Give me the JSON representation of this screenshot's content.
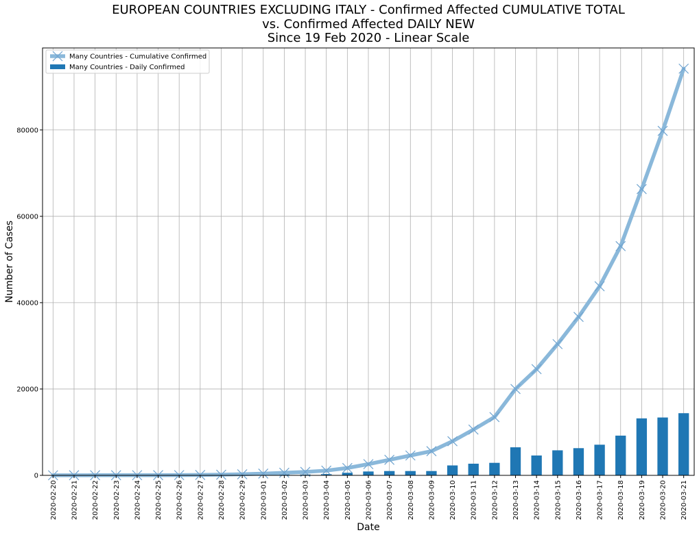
{
  "chart_data": {
    "type": "bar+line",
    "title": [
      "EUROPEAN COUNTRIES EXCLUDING ITALY - Confirmed Affected CUMULATIVE TOTAL",
      "vs. Confirmed Affected DAILY NEW",
      "Since 19 Feb 2020 - Linear Scale"
    ],
    "xlabel": "Date",
    "ylabel": "Number of Cases",
    "ylim": [
      0,
      99000
    ],
    "yticks": [
      0,
      20000,
      40000,
      60000,
      80000
    ],
    "grid": true,
    "legend_position": "top-left",
    "categories": [
      "2020-02-20",
      "2020-02-21",
      "2020-02-22",
      "2020-02-23",
      "2020-02-24",
      "2020-02-25",
      "2020-02-26",
      "2020-02-27",
      "2020-02-28",
      "2020-02-29",
      "2020-03-01",
      "2020-03-02",
      "2020-03-03",
      "2020-03-04",
      "2020-03-05",
      "2020-03-06",
      "2020-03-07",
      "2020-03-08",
      "2020-03-09",
      "2020-03-10",
      "2020-03-11",
      "2020-03-12",
      "2020-03-13",
      "2020-03-14",
      "2020-03-15",
      "2020-03-16",
      "2020-03-17",
      "2020-03-18",
      "2020-03-19",
      "2020-03-20",
      "2020-03-21"
    ],
    "series": [
      {
        "name": "Many Countries - Cumulative Confirmed",
        "kind": "line",
        "color": "#8ab8da",
        "marker": "x",
        "values": [
          20,
          25,
          30,
          35,
          40,
          45,
          60,
          90,
          150,
          250,
          400,
          600,
          800,
          1100,
          1700,
          2600,
          3600,
          4600,
          5600,
          7900,
          10600,
          13500,
          20000,
          24600,
          30400,
          36700,
          43800,
          53100,
          66300,
          79800,
          94200
        ]
      },
      {
        "name": "Many Countries - Daily Confirmed",
        "kind": "bar",
        "color": "#1f77b4",
        "values": [
          5,
          5,
          5,
          5,
          5,
          5,
          15,
          30,
          60,
          100,
          150,
          200,
          200,
          300,
          600,
          900,
          1000,
          1000,
          1000,
          2300,
          2700,
          2900,
          6500,
          4600,
          5800,
          6300,
          7100,
          9200,
          13200,
          13400,
          14400
        ]
      }
    ]
  }
}
